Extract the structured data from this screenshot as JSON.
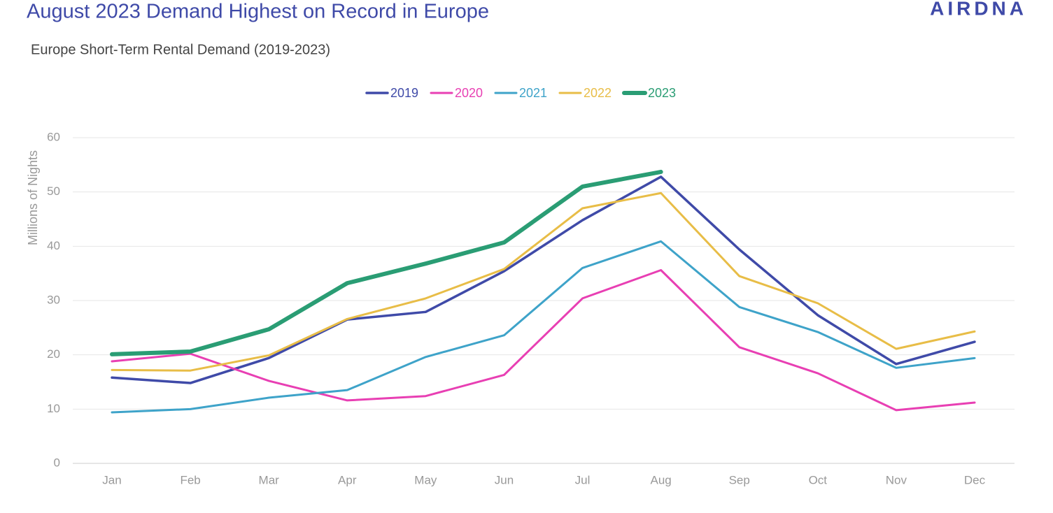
{
  "brand": "AIRDNA",
  "chart_data": {
    "type": "line",
    "title": "August 2023 Demand Highest on Record in Europe",
    "subtitle": "Europe Short-Term Rental Demand (2019-2023)",
    "y_label": "Millions of Nights",
    "categories": [
      "Jan",
      "Feb",
      "Mar",
      "Apr",
      "May",
      "Jun",
      "Jul",
      "Aug",
      "Sep",
      "Oct",
      "Nov",
      "Dec"
    ],
    "series": [
      {
        "name": "2019",
        "color": "#3f4aa8",
        "width": 3.5,
        "values": [
          15.8,
          14.8,
          19.4,
          26.5,
          27.9,
          35.4,
          44.8,
          52.8,
          39.4,
          27.3,
          18.3,
          22.4
        ]
      },
      {
        "name": "2020",
        "color": "#e83fb3",
        "width": 3,
        "values": [
          18.8,
          20.2,
          15.2,
          11.6,
          12.4,
          16.3,
          30.4,
          35.6,
          21.4,
          16.6,
          9.8,
          11.2
        ]
      },
      {
        "name": "2021",
        "color": "#3ea3c9",
        "width": 3,
        "values": [
          9.4,
          10.0,
          12.1,
          13.5,
          19.6,
          23.6,
          36.0,
          40.9,
          28.8,
          24.2,
          17.6,
          19.4
        ]
      },
      {
        "name": "2022",
        "color": "#e8bd47",
        "width": 3,
        "values": [
          17.2,
          17.1,
          19.9,
          26.6,
          30.4,
          35.8,
          47.0,
          49.8,
          34.5,
          29.5,
          21.1,
          24.3
        ]
      },
      {
        "name": "2023",
        "color": "#2a9d74",
        "width": 6,
        "values": [
          20.1,
          20.6,
          24.7,
          33.2,
          36.8,
          40.7,
          51.0,
          53.7,
          null,
          null,
          null,
          null
        ]
      }
    ],
    "ylim": [
      0,
      60
    ],
    "yticks": [
      0,
      10,
      20,
      30,
      40,
      50,
      60
    ],
    "grid": true,
    "legend": "top"
  }
}
